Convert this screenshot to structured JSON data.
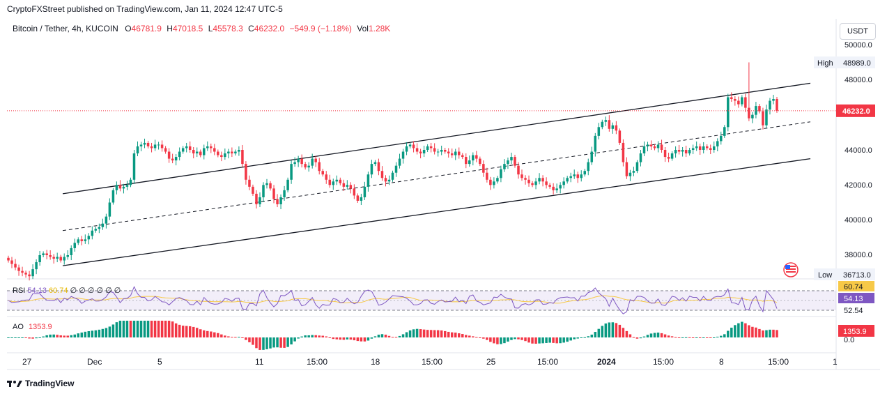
{
  "header": {
    "published": "CryptoFXStreet published on TradingView.com, Jan 11, 2024 12:47 UTC-5"
  },
  "legend": {
    "symbol": "Bitcoin / Tether, 4h, KUCOIN",
    "o_label": "O",
    "o": "46781.9",
    "h_label": "H",
    "h": "47018.5",
    "l_label": "L",
    "l": "45578.3",
    "c_label": "C",
    "c": "46232.0",
    "change": "−549.9 (−1.18%)",
    "vol_label": "Vol",
    "vol": "1.28K"
  },
  "currency_button": "USDT",
  "price_axis": {
    "ticks": [
      "50000.0",
      "48000.0",
      "44000.0",
      "42000.0",
      "40000.0",
      "38000.0"
    ],
    "high_label": "High",
    "high_value": "48989.0",
    "low_label": "Low",
    "low_value": "36713.0",
    "last_price": "46232.0"
  },
  "rsi": {
    "label": "RSI",
    "value": "54.13",
    "ma_value": "60.74",
    "nan_values": "∅ ∅ ∅ ∅ ∅ ∅",
    "axis_values": [
      "60.74",
      "54.13",
      "52.54"
    ]
  },
  "ao": {
    "label": "AO",
    "value": "1353.9",
    "axis_values": [
      "1353.9",
      "0.0"
    ]
  },
  "time_axis": [
    "27",
    "Dec",
    "5",
    "11",
    "15:00",
    "18",
    "15:00",
    "25",
    "15:00",
    "2024",
    "15:00",
    "8",
    "15:00",
    "1"
  ],
  "footer": {
    "brand": "TradingView"
  },
  "colors": {
    "up": "#089981",
    "down": "#f23645",
    "rsi": "#7e57c2",
    "rsi_ma": "#f7c948",
    "channel": "#131722"
  },
  "chart_data": {
    "type": "candlestick",
    "symbol": "Bitcoin / Tether",
    "interval": "4h",
    "ylim": [
      36000,
      50800
    ],
    "last_close": 46232.0,
    "high": 48989.0,
    "low": 36713.0,
    "channel": {
      "upper": [
        [
          0.0,
          41500
        ],
        [
          1.0,
          47800
        ]
      ],
      "middle": [
        [
          0.0,
          39400
        ],
        [
          1.0,
          45600
        ]
      ],
      "lower": [
        [
          0.0,
          37400
        ],
        [
          1.0,
          43500
        ]
      ]
    },
    "closes": [
      37700,
      37500,
      37300,
      37100,
      37000,
      36900,
      36800,
      37200,
      37600,
      38000,
      38100,
      38000,
      37900,
      37800,
      37900,
      37700,
      37900,
      38000,
      38400,
      38700,
      38900,
      38800,
      38900,
      39100,
      39400,
      39500,
      39600,
      39800,
      40200,
      41000,
      41700,
      42000,
      41800,
      41900,
      42000,
      42300,
      43800,
      44200,
      44300,
      44400,
      44200,
      44100,
      44300,
      44300,
      44100,
      43900,
      43500,
      43400,
      43600,
      43900,
      44100,
      44200,
      44000,
      43800,
      43900,
      43700,
      44100,
      44200,
      44100,
      43900,
      43700,
      43600,
      43800,
      43900,
      43800,
      43900,
      44000,
      43200,
      42300,
      41900,
      41500,
      40900,
      41300,
      42000,
      42100,
      41800,
      41200,
      40900,
      41300,
      41700,
      42300,
      43200,
      43300,
      43500,
      43200,
      43000,
      43100,
      43500,
      43300,
      42800,
      42600,
      42300,
      42000,
      42200,
      42300,
      42100,
      41900,
      42000,
      41800,
      41400,
      41100,
      41300,
      41900,
      42600,
      43200,
      43300,
      42800,
      42400,
      42200,
      42300,
      42700,
      43100,
      43500,
      43900,
      44200,
      44300,
      44100,
      43900,
      43800,
      44000,
      44200,
      44100,
      43900,
      43900,
      44000,
      43900,
      43800,
      43700,
      43900,
      43700,
      43600,
      43200,
      43400,
      43700,
      43500,
      43200,
      42700,
      42300,
      42000,
      42200,
      42400,
      42900,
      43200,
      43400,
      43600,
      43100,
      42600,
      42400,
      42300,
      42100,
      42000,
      42200,
      42400,
      42200,
      42000,
      41900,
      41700,
      41800,
      42000,
      42200,
      42400,
      42500,
      42600,
      42400,
      42600,
      42800,
      43300,
      43900,
      44800,
      45300,
      45600,
      45700,
      45200,
      45400,
      45100,
      44400,
      43300,
      42500,
      42700,
      42800,
      43300,
      43800,
      44200,
      44300,
      44200,
      44100,
      44300,
      44000,
      43600,
      43500,
      43800,
      44000,
      43900,
      44000,
      43800,
      44000,
      44100,
      44200,
      44000,
      44200,
      44100,
      44000,
      44200,
      44500,
      44800,
      45300,
      47000,
      46900,
      46800,
      46600,
      47000,
      46400,
      45800,
      46000,
      46500,
      46200,
      45400,
      46300,
      46800,
      46900,
      46232
    ]
  }
}
